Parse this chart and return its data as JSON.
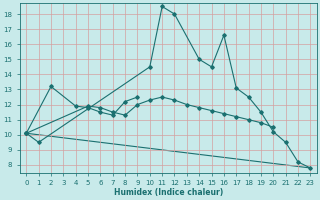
{
  "xlabel": "Humidex (Indice chaleur)",
  "xlim": [
    -0.5,
    23.5
  ],
  "ylim": [
    7.5,
    18.7
  ],
  "xticks": [
    0,
    1,
    2,
    3,
    4,
    5,
    6,
    7,
    8,
    9,
    10,
    11,
    12,
    13,
    14,
    15,
    16,
    17,
    18,
    19,
    20,
    21,
    22,
    23
  ],
  "yticks": [
    8,
    9,
    10,
    11,
    12,
    13,
    14,
    15,
    16,
    17,
    18
  ],
  "background_color": "#c8eaea",
  "grid_color": "#d4a0a0",
  "line_color": "#1a7070",
  "line1_x": [
    0,
    1,
    10,
    11,
    12,
    14,
    15,
    16,
    17,
    18,
    19,
    20,
    21,
    22,
    23
  ],
  "line1_y": [
    10.1,
    9.5,
    14.5,
    18.5,
    18.0,
    15.0,
    14.5,
    16.6,
    13.1,
    12.5,
    11.5,
    10.2,
    9.5,
    8.2,
    7.8
  ],
  "line2_x": [
    0,
    2,
    4,
    5,
    6,
    7,
    8,
    9
  ],
  "line2_y": [
    10.1,
    13.2,
    11.9,
    11.8,
    11.5,
    11.3,
    12.2,
    12.5
  ],
  "line3_x": [
    0,
    5,
    6,
    7,
    8,
    9,
    10,
    11,
    12,
    13,
    14,
    15,
    16,
    17,
    18,
    19,
    20
  ],
  "line3_y": [
    10.1,
    11.9,
    11.8,
    11.5,
    11.3,
    12.0,
    12.3,
    12.5,
    12.3,
    12.0,
    11.8,
    11.6,
    11.4,
    11.2,
    11.0,
    10.8,
    10.5
  ],
  "line4_x": [
    0,
    23
  ],
  "line4_y": [
    10.1,
    7.8
  ]
}
